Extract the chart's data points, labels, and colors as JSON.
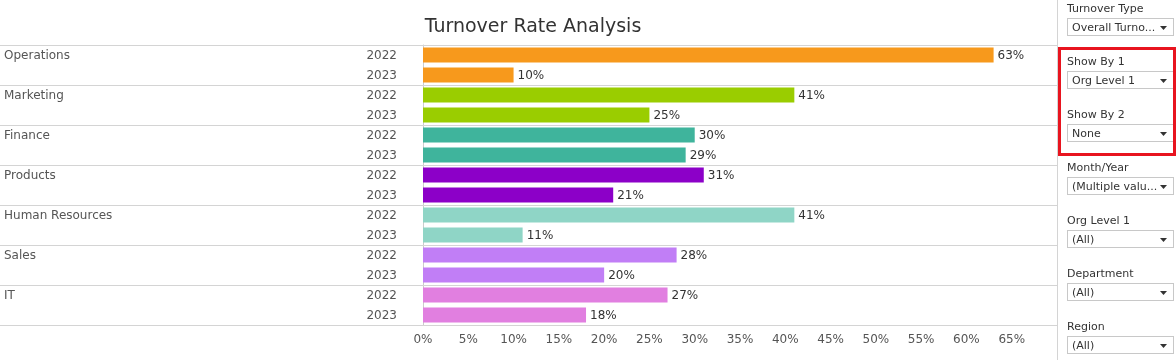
{
  "chart_data": {
    "type": "bar",
    "orientation": "horizontal",
    "title": "Turnover Rate Analysis",
    "categories": [
      "2022",
      "2023",
      "2022",
      "2023",
      "2022",
      "2023",
      "2022",
      "2023",
      "2022",
      "2023",
      "2022",
      "2023",
      "2022",
      "2023"
    ],
    "values": [
      63,
      10,
      41,
      25,
      30,
      29,
      31,
      21,
      41,
      11,
      28,
      20,
      27,
      18
    ],
    "value_labels": [
      "63%",
      "10%",
      "41%",
      "25%",
      "30%",
      "29%",
      "31%",
      "21%",
      "41%",
      "11%",
      "28%",
      "20%",
      "27%",
      "18%"
    ],
    "colors": [
      "#f7991c",
      "#f7991c",
      "#9acd00",
      "#9acd00",
      "#3fb49c",
      "#3fb49c",
      "#8c00c8",
      "#8c00c8",
      "#8fd5c6",
      "#8fd5c6",
      "#c17ef6",
      "#c17ef6",
      "#e17fe0",
      "#e17fe0"
    ],
    "xlim": [
      0,
      70
    ],
    "xticks": [
      {
        "value": 0,
        "label": "0%"
      },
      {
        "value": 5,
        "label": "5%"
      },
      {
        "value": 10,
        "label": "10%"
      },
      {
        "value": 15,
        "label": "15%"
      },
      {
        "value": 20,
        "label": "20%"
      },
      {
        "value": 25,
        "label": "25%"
      },
      {
        "value": 30,
        "label": "30%"
      },
      {
        "value": 35,
        "label": "35%"
      },
      {
        "value": 40,
        "label": "40%"
      },
      {
        "value": 45,
        "label": "45%"
      },
      {
        "value": 50,
        "label": "50%"
      },
      {
        "value": 55,
        "label": "55%"
      },
      {
        "value": 60,
        "label": "60%"
      },
      {
        "value": 65,
        "label": "65%"
      }
    ],
    "grid": false,
    "annotations": [
      "Operations",
      "Marketing",
      "Finance",
      "Products",
      "Human Resources",
      "Sales",
      "IT",
      "Turnover Type",
      "Overall Turno...",
      "Show By 1",
      "Org Level 1",
      "Show By 2",
      "None",
      "Month/Year",
      "(Multiple valu...",
      "Org Level 1",
      "(All)",
      "Department",
      "(All)",
      "Region",
      "(All)"
    ]
  }
}
